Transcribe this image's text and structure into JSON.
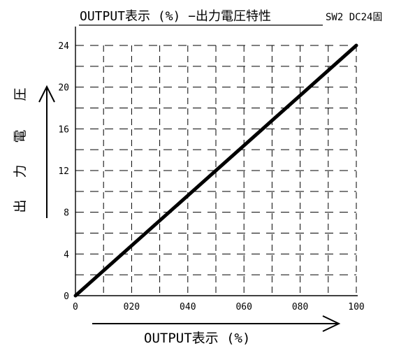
{
  "chart_data": {
    "type": "line",
    "title": "OUTPUT表示 (%) −出力電圧特性",
    "title_suffix": "SW2 DC24固",
    "xlabel": "OUTPUT表示 (%)",
    "ylabel": "出力電圧",
    "ylabel_chars": [
      "出",
      "力",
      "電",
      "圧"
    ],
    "x_tick_labels": [
      "0",
      "020",
      "040",
      "060",
      "080",
      "100"
    ],
    "y_tick_labels": [
      "0",
      "4",
      "8",
      "12",
      "16",
      "20",
      "24"
    ],
    "xlim": [
      0,
      100
    ],
    "ylim": [
      0,
      24
    ],
    "grid": true,
    "grid_style": "dashed",
    "series": [
      {
        "x": [
          0,
          100
        ],
        "y": [
          0,
          24
        ],
        "color": "#000000"
      }
    ]
  }
}
